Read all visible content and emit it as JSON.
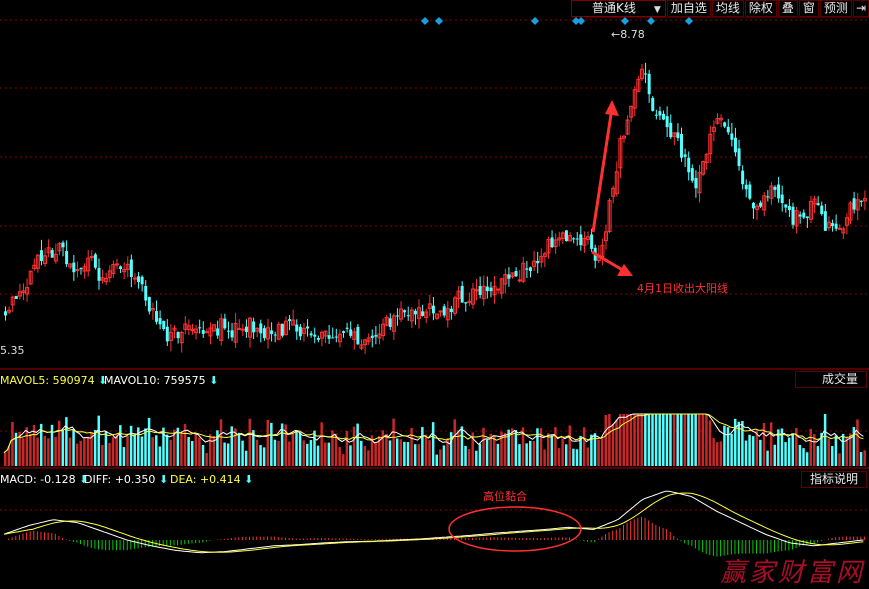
{
  "toolbar": {
    "kline_select": "普通K线",
    "buttons": [
      "加自选",
      "均线",
      "除权",
      "叠",
      "窗",
      "预测"
    ],
    "exit_icon": "exit-arrow-icon"
  },
  "price_panel": {
    "high_label": "8.78",
    "low_label": "5.35",
    "annotation": "4月1日收出大阳线",
    "marker_icon": "diamond-icon",
    "marker_color": "#1aa0e0"
  },
  "volume_panel": {
    "mavol5_label": "MAVOL5: 590974",
    "mavol10_label": "MAVOL10: 759575",
    "select_label": "成交量"
  },
  "macd_panel": {
    "macd_label": "MACD: -0.128",
    "diff_label": "DIFF: +0.350",
    "dea_label": "DEA: +0.414",
    "button_label": "指标说明",
    "annotation": "高位黏合"
  },
  "watermark": "赢家财富网",
  "colors": {
    "up": "#ff3232",
    "down": "#54ffff",
    "grid": "#8b0000",
    "ma_white": "#ffffff",
    "ma_yellow": "#ffff40",
    "macd_down": "#00cc00"
  },
  "chart_data": {
    "type": "candlestick",
    "price_range": [
      5.35,
      8.78
    ],
    "price_series": [
      5.8,
      5.9,
      6.1,
      6.3,
      6.4,
      6.5,
      6.3,
      6.2,
      6.3,
      6.1,
      6.2,
      6.3,
      6.1,
      5.9,
      5.6,
      5.5,
      5.5,
      5.6,
      5.6,
      5.5,
      5.6,
      5.5,
      5.6,
      5.6,
      5.5,
      5.5,
      5.6,
      5.6,
      5.5,
      5.4,
      5.5,
      5.5,
      5.5,
      5.4,
      5.5,
      5.6,
      5.7,
      5.7,
      5.7,
      5.8,
      5.8,
      5.8,
      5.9,
      5.9,
      6.0,
      6.0,
      6.1,
      6.1,
      6.2,
      6.3,
      6.4,
      6.6,
      6.6,
      6.5,
      6.6,
      6.3,
      6.9,
      7.6,
      8.1,
      8.5,
      8.0,
      7.8,
      7.7,
      7.4,
      7.1,
      7.5,
      7.9,
      7.7,
      7.3,
      7.0,
      6.9,
      7.1,
      6.9,
      6.8,
      6.8,
      7.0,
      6.7,
      6.6,
      6.8,
      7.0
    ],
    "macd_diff": [
      0.1,
      0.25,
      0.35,
      0.3,
      0.15,
      0.0,
      -0.1,
      -0.18,
      -0.22,
      -0.2,
      -0.15,
      -0.1,
      -0.08,
      -0.05,
      -0.03,
      -0.02,
      0.0,
      0.02,
      0.05,
      0.08,
      0.12,
      0.15,
      0.18,
      0.22,
      0.18,
      0.35,
      0.7,
      0.85,
      0.75,
      0.5,
      0.3,
      0.1,
      -0.05,
      -0.1,
      -0.05,
      0.0
    ]
  }
}
